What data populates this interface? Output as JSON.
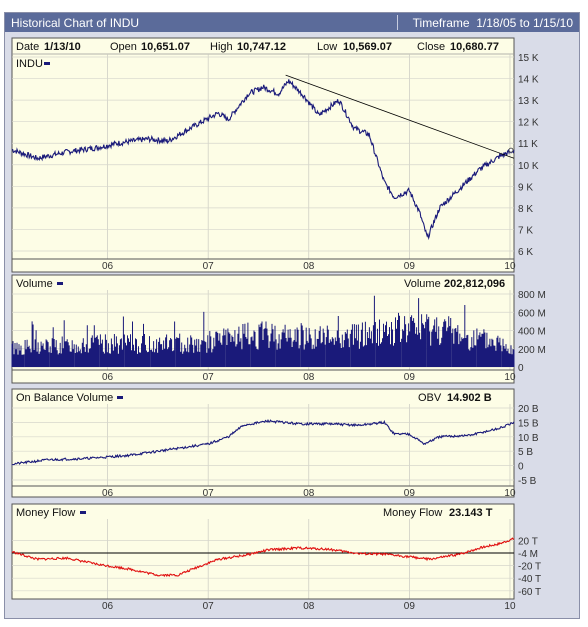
{
  "header": {
    "title": "Historical Chart of INDU",
    "timeframe_label": "Timeframe",
    "timeframe_value": "1/18/05 to  1/15/10"
  },
  "quote": {
    "date_label": "Date",
    "date": "1/13/10",
    "open_label": "Open",
    "open": "10,651.07",
    "high_label": "High",
    "high": "10,747.12",
    "low_label": "Low",
    "low": "10,569.07",
    "close_label": "Close",
    "close": "10,680.77"
  },
  "chart_data": [
    {
      "type": "line",
      "title": "INDU",
      "x_ticks": [
        "06",
        "07",
        "08",
        "09",
        "10"
      ],
      "y_ticks": [
        "6 K",
        "7 K",
        "8 K",
        "9 K",
        "10 K",
        "11 K",
        "12 K",
        "13 K",
        "14 K",
        "15 K"
      ],
      "ylim": [
        6000,
        15000
      ],
      "series": [
        {
          "name": "INDU",
          "x": [
            2005.05,
            2005.3,
            2005.6,
            2005.9,
            2006.1,
            2006.4,
            2006.6,
            2006.9,
            2007.1,
            2007.2,
            2007.4,
            2007.55,
            2007.7,
            2007.8,
            2007.95,
            2008.1,
            2008.3,
            2008.45,
            2008.6,
            2008.75,
            2008.85,
            2009.0,
            2009.1,
            2009.18,
            2009.3,
            2009.5,
            2009.7,
            2009.9,
            2010.04
          ],
          "y": [
            10700,
            10300,
            10600,
            10800,
            11000,
            11200,
            11100,
            11900,
            12400,
            12100,
            13300,
            13600,
            13300,
            13900,
            13200,
            12300,
            13000,
            11700,
            11400,
            9200,
            8500,
            8800,
            7800,
            6600,
            8000,
            8900,
            9800,
            10400,
            10680
          ]
        }
      ],
      "trendline": {
        "from": [
          2007.77,
          14160
        ],
        "to": [
          2010.04,
          10300
        ]
      },
      "marker": {
        "x": 2010.04,
        "y": 10680
      }
    },
    {
      "type": "bar",
      "title": "Volume",
      "value_label": "Volume",
      "value": "202,812,096",
      "x_ticks": [
        "06",
        "07",
        "08",
        "09",
        "10"
      ],
      "y_ticks": [
        "0",
        "200 M",
        "400 M",
        "600 M",
        "800 M"
      ],
      "ylim": [
        0,
        800000000
      ],
      "series": [
        {
          "name": "Volume",
          "x": [
            2005.05,
            2005.5,
            2006.0,
            2006.5,
            2007.0,
            2007.3,
            2007.6,
            2008.0,
            2008.4,
            2008.8,
            2009.0,
            2009.3,
            2009.6,
            2009.9,
            2010.04
          ],
          "values": [
            210000000,
            230000000,
            250000000,
            250000000,
            270000000,
            330000000,
            350000000,
            320000000,
            330000000,
            400000000,
            420000000,
            430000000,
            320000000,
            260000000,
            202812096
          ]
        }
      ]
    },
    {
      "type": "line",
      "title": "On Balance Volume",
      "value_label": "OBV",
      "value": "14.902 B",
      "x_ticks": [
        "06",
        "07",
        "08",
        "09",
        "10"
      ],
      "y_ticks": [
        "-5 B",
        "0",
        "5 B",
        "10 B",
        "15 B",
        "20 B"
      ],
      "ylim": [
        -5,
        20
      ],
      "series": [
        {
          "name": "On Balance Volume",
          "x": [
            2005.05,
            2005.4,
            2005.8,
            2006.2,
            2006.6,
            2007.0,
            2007.2,
            2007.35,
            2007.6,
            2007.9,
            2008.2,
            2008.5,
            2008.75,
            2008.85,
            2009.0,
            2009.15,
            2009.3,
            2009.6,
            2009.9,
            2010.04
          ],
          "y": [
            0.5,
            2,
            2.5,
            3.5,
            5.5,
            7.5,
            10,
            14,
            15.5,
            14.5,
            14.5,
            14,
            15,
            11,
            11,
            7.5,
            10,
            10.5,
            13,
            14.9
          ]
        }
      ]
    },
    {
      "type": "line",
      "title": "Money Flow",
      "value_label": "Money Flow",
      "value": "23.143 T",
      "x_ticks": [
        "06",
        "07",
        "08",
        "09",
        "10"
      ],
      "y_ticks": [
        "-60 T",
        "-40 T",
        "-20 T",
        "-4 M",
        "20 T"
      ],
      "ylim": [
        -60,
        30
      ],
      "zero_line": 0,
      "series": [
        {
          "name": "Money Flow",
          "x": [
            2005.05,
            2005.3,
            2005.6,
            2005.9,
            2006.2,
            2006.5,
            2006.7,
            2006.9,
            2007.1,
            2007.35,
            2007.6,
            2007.9,
            2008.2,
            2008.5,
            2008.75,
            2009.0,
            2009.2,
            2009.5,
            2009.7,
            2009.9,
            2010.04
          ],
          "y": [
            2,
            -10,
            -8,
            -18,
            -25,
            -35,
            -35,
            -22,
            -10,
            -4,
            5,
            8,
            6,
            -1,
            -2,
            -6,
            -10,
            -2,
            8,
            15,
            23
          ]
        }
      ]
    }
  ]
}
